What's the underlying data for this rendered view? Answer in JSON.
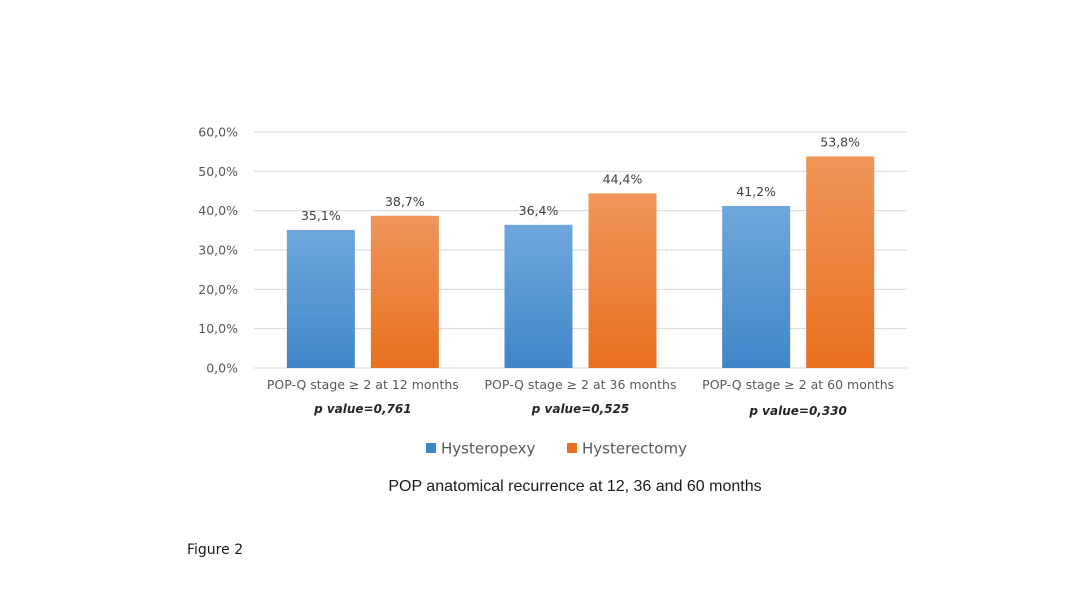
{
  "chart_data": {
    "type": "bar",
    "categories": [
      "POP-Q stage ≥ 2 at 12 months",
      "POP-Q stage ≥ 2 at 36 months",
      "POP-Q stage ≥ 2 at 60 months"
    ],
    "p_values": [
      "p value=0,761",
      "p value=0,525",
      "p value=0,330"
    ],
    "series": [
      {
        "name": "Hysteropexy",
        "values": [
          35.1,
          36.4,
          41.2
        ],
        "labels": [
          "35,1%",
          "36,4%",
          "41,2%"
        ],
        "color_top": "#6fa7dc",
        "color_bottom": "#3f86c8"
      },
      {
        "name": "Hysterectomy",
        "values": [
          38.7,
          44.4,
          53.8
        ],
        "labels": [
          "38,7%",
          "44,4%",
          "53,8%"
        ],
        "color_top": "#f0955a",
        "color_bottom": "#e8701f"
      }
    ],
    "y_ticks": [
      0,
      10,
      20,
      30,
      40,
      50,
      60
    ],
    "y_tick_labels": [
      "0,0%",
      "10,0%",
      "20,0%",
      "30,0%",
      "40,0%",
      "50,0%",
      "60,0%"
    ],
    "ylim": [
      0,
      60
    ],
    "grid": true,
    "legend_position": "bottom"
  },
  "caption": "POP anatomical recurrence at 12, 36 and 60 months",
  "figure_label": "Figure 2"
}
